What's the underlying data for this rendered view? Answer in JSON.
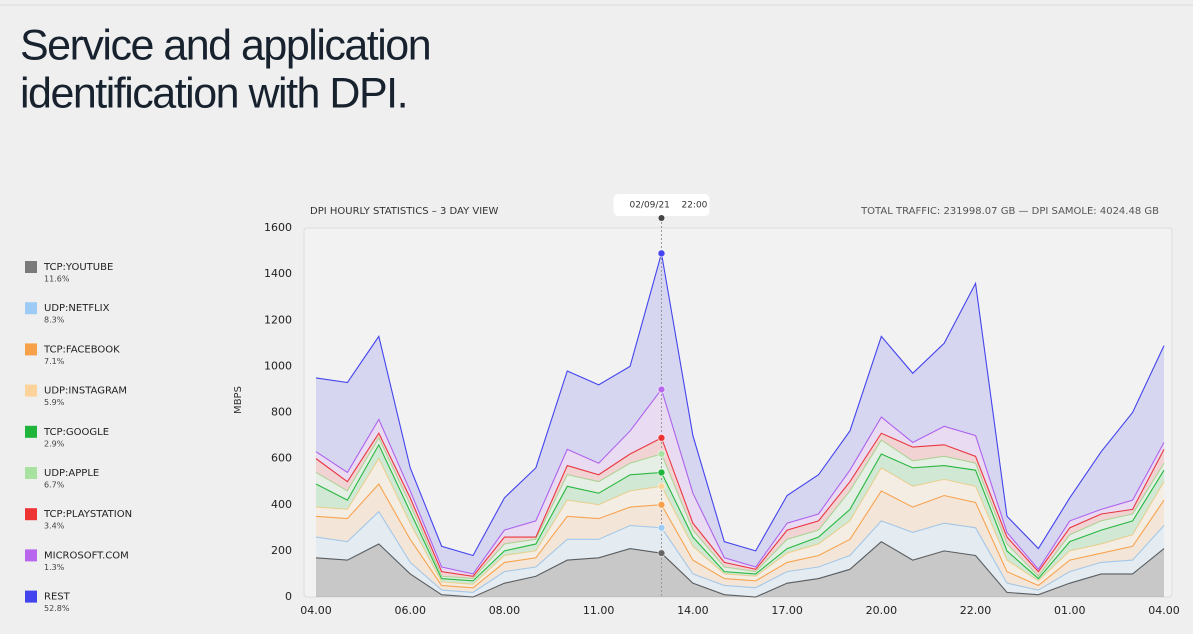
{
  "heading": "Service and application identification with DPI.",
  "chart_data": {
    "type": "stacked_area",
    "title": "DPI HOURLY STATISTICS – 3 DAY VIEW",
    "summary": "TOTAL TRAFFIC: 231998.07 GB — DPI SAMOLE: 4024.48 GB",
    "y_label": "MBPS",
    "tooltip": {
      "index": 11,
      "date": "02/09/21",
      "time": "22:00"
    },
    "categories": [
      "04.00",
      null,
      null,
      "06.00",
      null,
      null,
      "08.00",
      null,
      null,
      "11.00",
      null,
      null,
      "14.00",
      null,
      null,
      "17.00",
      null,
      null,
      "20.00",
      null,
      null,
      "22.00",
      null,
      null,
      "01.00",
      null,
      null,
      "04.00"
    ],
    "ylim": [
      0,
      1600
    ],
    "yticks": [
      0,
      200,
      400,
      600,
      800,
      1000,
      1200,
      1400,
      1600
    ],
    "grid": false,
    "series": [
      {
        "name": "TCP:YOUTUBE",
        "share": "11.6%",
        "color": "#7a7a7a",
        "values": [
          170,
          160,
          230,
          100,
          10,
          0,
          60,
          90,
          160,
          170,
          210,
          190,
          60,
          10,
          0,
          60,
          80,
          120,
          240,
          160,
          200,
          180,
          20,
          10,
          60,
          100,
          100,
          210
        ]
      },
      {
        "name": "UDP:NETFLIX",
        "share": "8.3%",
        "color": "#9ecbf5",
        "values": [
          90,
          80,
          140,
          50,
          20,
          20,
          50,
          40,
          90,
          80,
          100,
          110,
          40,
          40,
          40,
          50,
          50,
          60,
          90,
          120,
          120,
          120,
          40,
          20,
          50,
          50,
          60,
          100
        ]
      },
      {
        "name": "TCP:FACEBOOK",
        "share": "7.1%",
        "color": "#f7a04a",
        "values": [
          90,
          100,
          120,
          100,
          20,
          20,
          40,
          40,
          100,
          90,
          80,
          100,
          60,
          30,
          30,
          40,
          50,
          70,
          130,
          110,
          120,
          110,
          50,
          20,
          50,
          40,
          60,
          110
        ]
      },
      {
        "name": "UDP:INSTAGRAM",
        "share": "5.9%",
        "color": "#fcd39b",
        "values": [
          40,
          40,
          110,
          70,
          15,
          15,
          30,
          30,
          70,
          60,
          70,
          80,
          60,
          20,
          20,
          40,
          50,
          80,
          100,
          90,
          70,
          70,
          50,
          20,
          40,
          40,
          50,
          80
        ]
      },
      {
        "name": "TCP:GOOGLE",
        "share": "2.9%",
        "color": "#1fb53a",
        "values": [
          100,
          40,
          60,
          50,
          15,
          15,
          20,
          30,
          60,
          50,
          70,
          60,
          40,
          10,
          10,
          20,
          30,
          50,
          60,
          80,
          60,
          70,
          40,
          10,
          40,
          60,
          60,
          50
        ]
      },
      {
        "name": "UDP:APPLE",
        "share": "6.7%",
        "color": "#a8e2a0",
        "values": [
          50,
          40,
          30,
          30,
          10,
          10,
          30,
          20,
          50,
          50,
          50,
          80,
          30,
          20,
          10,
          40,
          30,
          80,
          60,
          30,
          40,
          30,
          30,
          10,
          30,
          40,
          30,
          30
        ]
      },
      {
        "name": "TCP:PLAYSTATION",
        "share": "3.4%",
        "color": "#ee3333",
        "values": [
          60,
          40,
          20,
          30,
          20,
          10,
          30,
          10,
          40,
          30,
          40,
          70,
          30,
          20,
          10,
          40,
          40,
          40,
          30,
          60,
          50,
          30,
          30,
          20,
          30,
          30,
          20,
          60
        ]
      },
      {
        "name": "MICROSOFT.COM",
        "share": "1.3%",
        "color": "#b866ee",
        "values": [
          30,
          40,
          60,
          30,
          20,
          10,
          30,
          70,
          70,
          50,
          100,
          210,
          130,
          20,
          10,
          30,
          30,
          50,
          70,
          20,
          80,
          90,
          20,
          10,
          30,
          20,
          40,
          30
        ]
      },
      {
        "name": "REST",
        "share": "52.8%",
        "color": "#4444ee",
        "values": [
          320,
          390,
          360,
          100,
          90,
          80,
          140,
          230,
          340,
          340,
          280,
          590,
          250,
          70,
          70,
          120,
          170,
          170,
          350,
          300,
          360,
          660,
          70,
          90,
          100,
          250,
          380,
          420
        ]
      }
    ]
  }
}
